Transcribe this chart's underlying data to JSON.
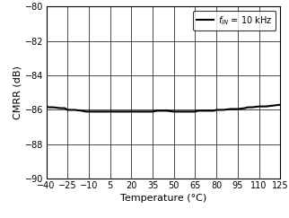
{
  "title": "",
  "xlabel": "Temperature (°C)",
  "ylabel": "CMRR (dB)",
  "xlim": [
    -40,
    125
  ],
  "ylim": [
    -90,
    -80
  ],
  "xticks": [
    -40,
    -25,
    -10,
    5,
    20,
    35,
    50,
    65,
    80,
    95,
    110,
    125
  ],
  "yticks": [
    -90,
    -88,
    -86,
    -84,
    -82,
    -80
  ],
  "line_color": "#000000",
  "line_width": 1.5,
  "bg_color": "#ffffff",
  "grid_color": "#000000",
  "grid_linewidth": 0.5,
  "x_data": [
    -40,
    -38,
    -35,
    -30,
    -27,
    -25,
    -22,
    -20,
    -15,
    -12,
    -10,
    -5,
    0,
    5,
    10,
    12,
    15,
    20,
    25,
    30,
    35,
    38,
    40,
    45,
    50,
    52,
    55,
    60,
    65,
    67,
    70,
    75,
    78,
    80,
    85,
    90,
    95,
    100,
    102,
    105,
    110,
    115,
    120,
    125
  ],
  "y_data": [
    -85.8,
    -85.85,
    -85.85,
    -85.9,
    -85.9,
    -86.0,
    -86.0,
    -86.0,
    -86.05,
    -86.1,
    -86.1,
    -86.1,
    -86.1,
    -86.1,
    -86.1,
    -86.1,
    -86.1,
    -86.1,
    -86.1,
    -86.1,
    -86.1,
    -86.05,
    -86.05,
    -86.05,
    -86.1,
    -86.1,
    -86.1,
    -86.1,
    -86.1,
    -86.05,
    -86.05,
    -86.05,
    -86.05,
    -86.0,
    -86.0,
    -85.95,
    -85.95,
    -85.9,
    -85.85,
    -85.85,
    -85.8,
    -85.8,
    -85.75,
    -85.7
  ],
  "legend_label": "fᴵₙ = 10 kHz",
  "tick_fontsize": 7,
  "label_fontsize": 8
}
